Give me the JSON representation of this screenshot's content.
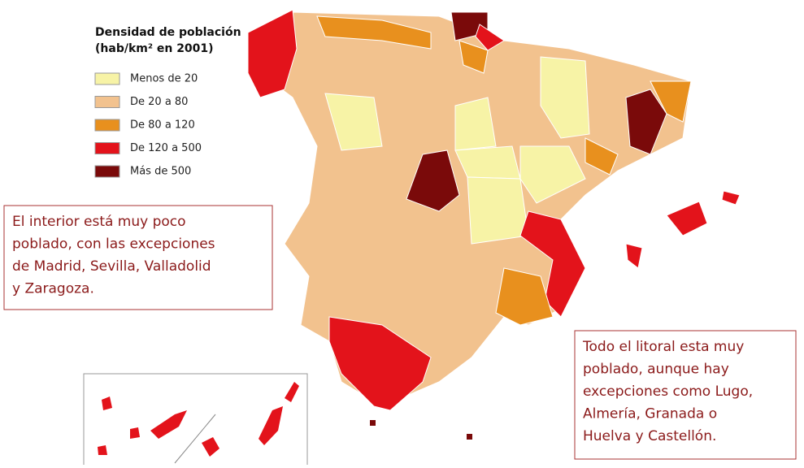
{
  "legend": {
    "title": [
      "Densidad de población",
      "(hab/km² en 2001)"
    ],
    "items": [
      {
        "label": "Menos de 20",
        "color": "#f7f3a6"
      },
      {
        "label": "De 20 a 80",
        "color": "#f2c28e"
      },
      {
        "label": "De 80 a 120",
        "color": "#e8901e"
      },
      {
        "label": "De 120 a 500",
        "color": "#e3131b"
      },
      {
        "label": "Más de 500",
        "color": "#7a0a0a"
      }
    ]
  },
  "notes": [
    {
      "lines": [
        "El interior está muy poco",
        "poblado, con las excepciones",
        "de Madrid, Sevilla, Valladolid",
        "y Zaragoza."
      ]
    },
    {
      "lines": [
        "Todo el litoral esta muy",
        "poblado, aunque hay",
        "excepciones como Lugo,",
        "Almería, Granada o",
        "Huelva y Castellón."
      ]
    }
  ]
}
